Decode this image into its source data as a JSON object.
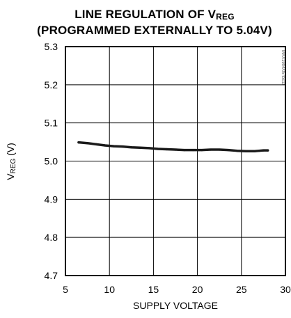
{
  "chart_data": {
    "type": "line",
    "title_line1_main": "LINE REGULATION OF V",
    "title_line1_sub": "REG",
    "title_line2": "(PROGRAMMED EXTERNALLY TO 5.04V)",
    "xlabel": "SUPPLY VOLTAGE",
    "ylabel_main": "V",
    "ylabel_sub": "REG",
    "ylabel_unit": " (V)",
    "xlim": [
      5,
      30
    ],
    "ylim": [
      4.7,
      5.3
    ],
    "xticks": [
      5,
      10,
      15,
      20,
      25,
      30
    ],
    "yticks": [
      4.7,
      4.8,
      4.9,
      5.0,
      5.1,
      5.2,
      5.3
    ],
    "xtick_labels": [
      "5",
      "10",
      "15",
      "20",
      "25",
      "30"
    ],
    "ytick_labels": [
      "4.7",
      "4.8",
      "4.9",
      "5.0",
      "5.1",
      "5.2",
      "5.3"
    ],
    "grid": true,
    "watermark": "MAX1904/05 toc11",
    "series": [
      {
        "color": "#1a1a1a",
        "x": [
          6.5,
          7.5,
          8.5,
          9.5,
          10.5,
          11.5,
          12.5,
          13.5,
          14.5,
          15.5,
          16.5,
          17.5,
          18.5,
          19.5,
          20.5,
          21.5,
          22.5,
          23.5,
          24.5,
          25.5,
          26.5,
          27,
          27.5,
          28
        ],
        "y": [
          5.049,
          5.047,
          5.044,
          5.041,
          5.039,
          5.038,
          5.036,
          5.035,
          5.034,
          5.032,
          5.031,
          5.03,
          5.029,
          5.029,
          5.029,
          5.03,
          5.03,
          5.029,
          5.027,
          5.026,
          5.026,
          5.027,
          5.028,
          5.028
        ]
      }
    ]
  }
}
